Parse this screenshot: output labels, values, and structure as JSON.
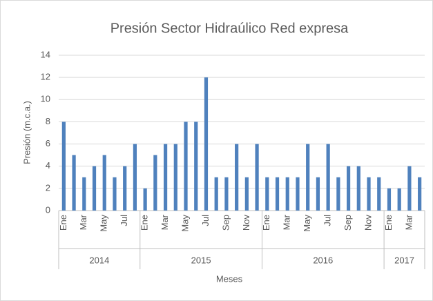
{
  "chart_data": {
    "type": "bar",
    "title": "Presión Sector Hidraúlico Red expresa",
    "x_label": "Meses",
    "y_label": "Presión (m.c.a.)",
    "groups": [
      {
        "label": "2014",
        "categories": [
          "Ene",
          null,
          "Mar",
          null,
          "May",
          null,
          "Jul",
          null
        ]
      },
      {
        "label": "2015",
        "categories": [
          "Ene",
          null,
          "Mar",
          null,
          "May",
          null,
          "Jul",
          null,
          "Sep",
          null,
          "Nov",
          null
        ]
      },
      {
        "label": "2016",
        "categories": [
          "Ene",
          null,
          "Mar",
          null,
          "May",
          null,
          "Jul",
          null,
          "Sep",
          null,
          "Nov",
          null
        ]
      },
      {
        "label": "2017",
        "categories": [
          "Ene",
          null,
          "Mar",
          null
        ]
      }
    ],
    "values": [
      8,
      5,
      3,
      4,
      5,
      3,
      4,
      6,
      2,
      5,
      6,
      6,
      8,
      8,
      12,
      3,
      3,
      6,
      3,
      6,
      3,
      3,
      3,
      3,
      6,
      3,
      6,
      3,
      4,
      4,
      3,
      3,
      2,
      2,
      4,
      3
    ],
    "color": "#4f81bd",
    "ylim": [
      0,
      14
    ],
    "yticks": [
      0,
      2,
      4,
      6,
      8,
      10,
      12,
      14
    ],
    "grid": true
  }
}
